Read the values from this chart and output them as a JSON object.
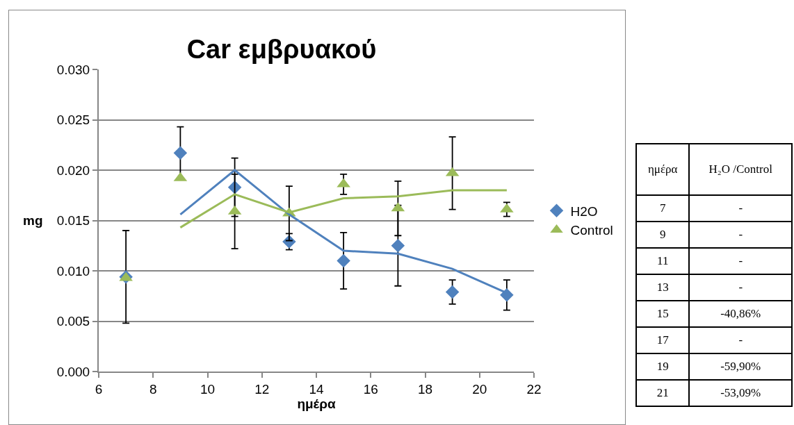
{
  "chart_data": {
    "type": "scatter",
    "title": "Car εμβρυακού",
    "xlabel": "ημέρα",
    "ylabel": "mg",
    "xlim": [
      6,
      22
    ],
    "xticks": [
      6,
      8,
      10,
      12,
      14,
      16,
      18,
      20,
      22
    ],
    "ylim": [
      0,
      0.03
    ],
    "yticks": [
      {
        "value": 0,
        "label": "0.000"
      },
      {
        "value": 0.005,
        "label": "0.005"
      },
      {
        "value": 0.01,
        "label": "0.010"
      },
      {
        "value": 0.015,
        "label": "0.015"
      },
      {
        "value": 0.02,
        "label": "0.020"
      },
      {
        "value": 0.025,
        "label": "0.025"
      },
      {
        "value": 0.03,
        "label": "0.030"
      }
    ],
    "grid": "y",
    "legend": "right",
    "x": [
      7,
      9,
      11,
      13,
      15,
      17,
      19,
      21
    ],
    "series": [
      {
        "name": "H2O",
        "color": "#4f81bd",
        "marker": "diamond",
        "values": [
          0.0094,
          0.0217,
          0.0183,
          0.0129,
          0.011,
          0.0125,
          0.0079,
          0.0076
        ],
        "errors": [
          0.0046,
          0.0026,
          0.0029,
          0.0008,
          0.0028,
          0.004,
          0.0012,
          0.0015
        ]
      },
      {
        "name": "Control",
        "color": "#9bbb59",
        "marker": "triangle",
        "values": [
          0.0093,
          0.0192,
          0.0159,
          0.0157,
          0.0186,
          0.0162,
          0.0197,
          0.0161
        ],
        "errors": [
          null,
          null,
          0.0037,
          0.0027,
          0.001,
          0.0027,
          0.0036,
          0.0007
        ]
      },
      {
        "type": "line",
        "color": "#4f81bd",
        "marker": "none",
        "x": [
          9,
          11,
          13,
          15,
          17,
          19,
          21
        ],
        "values": [
          0.0156,
          0.02,
          0.0156,
          0.012,
          0.0117,
          0.0102,
          0.0078
        ]
      },
      {
        "type": "line",
        "color": "#9bbb59",
        "marker": "none",
        "x": [
          9,
          11,
          13,
          15,
          17,
          19,
          21
        ],
        "values": [
          0.0143,
          0.0176,
          0.0158,
          0.0172,
          0.0174,
          0.018,
          0.018
        ]
      }
    ],
    "annotations": [
      "ημέρα",
      "H₂O /Control",
      "7",
      "-",
      "9",
      "-",
      "11",
      "-",
      "13",
      "-",
      "15",
      "-40,86%",
      "17",
      "-",
      "19",
      "-59,90%",
      "21",
      "-53,09%"
    ]
  }
}
